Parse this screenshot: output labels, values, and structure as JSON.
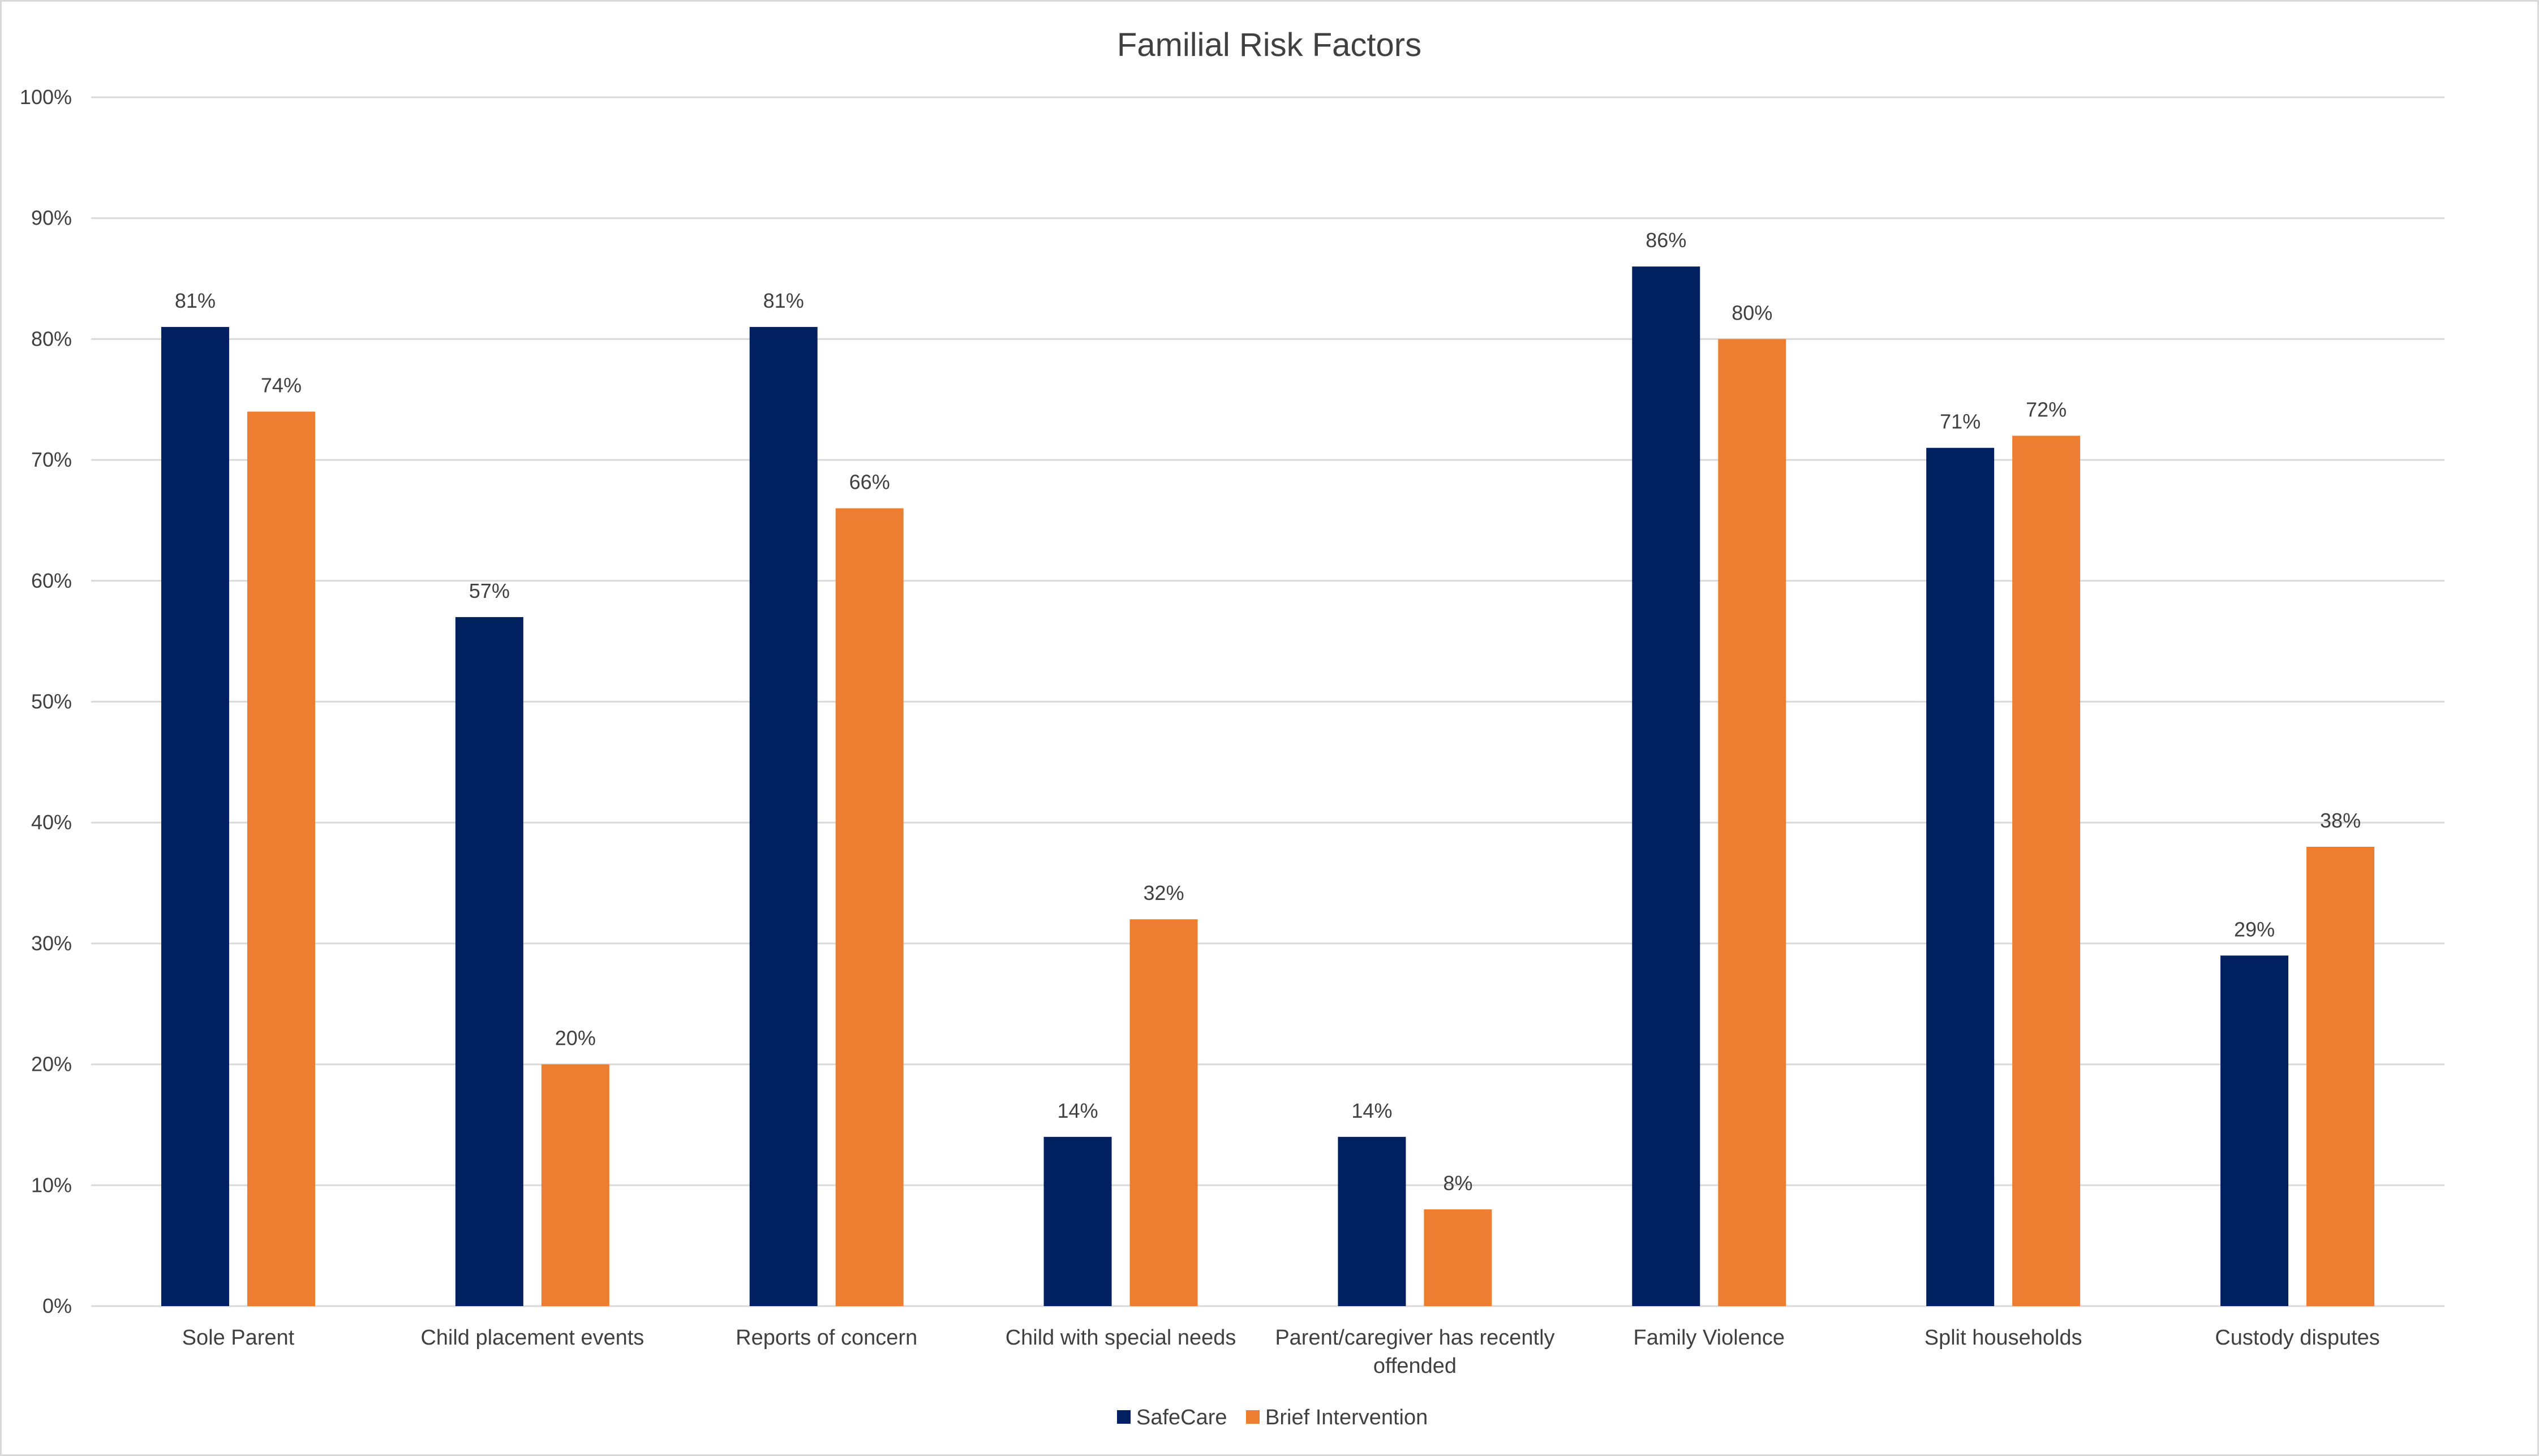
{
  "chart_data": {
    "type": "bar",
    "title": "Familial Risk Factors",
    "categories": [
      [
        "Sole Parent"
      ],
      [
        "Child placement events"
      ],
      [
        "Reports of concern"
      ],
      [
        "Child with special needs"
      ],
      [
        "Parent/caregiver has recently",
        "offended"
      ],
      [
        "Family Violence"
      ],
      [
        "Split households"
      ],
      [
        "Custody disputes"
      ]
    ],
    "series": [
      {
        "name": "SafeCare",
        "color": "#002060",
        "values": [
          81,
          57,
          81,
          14,
          14,
          86,
          71,
          29
        ],
        "labels": [
          "81%",
          "57%",
          "81%",
          "14%",
          "14%",
          "86%",
          "71%",
          "29%"
        ]
      },
      {
        "name": "Brief Intervention",
        "color": "#ed7d31",
        "values": [
          74,
          20,
          66,
          32,
          8,
          80,
          72,
          38
        ],
        "labels": [
          "74%",
          "20%",
          "66%",
          "32%",
          "8%",
          "80%",
          "72%",
          "38%"
        ]
      }
    ],
    "yticks": [
      "0%",
      "10%",
      "20%",
      "30%",
      "40%",
      "50%",
      "60%",
      "70%",
      "80%",
      "90%",
      "100%"
    ],
    "ylim": [
      0,
      100
    ],
    "xlabel": "",
    "ylabel": "",
    "grid": true,
    "legend_position": "bottom"
  }
}
